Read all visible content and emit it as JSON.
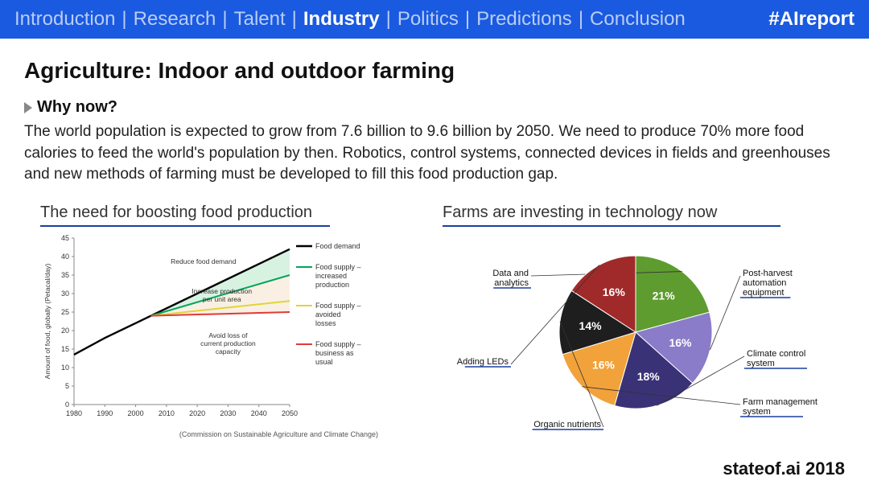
{
  "nav": {
    "items": [
      "Introduction",
      "Research",
      "Talent",
      "Industry",
      "Politics",
      "Predictions",
      "Conclusion"
    ],
    "active_index": 3,
    "separator": "|",
    "hashtag": "#AIreport",
    "bg_color": "#1a5ae0",
    "text_color": "#b9cdf5",
    "active_color": "#ffffff"
  },
  "title": "Agriculture: Indoor and outdoor farming",
  "subhead": "Why now?",
  "body": "The world population is expected to grow from 7.6 billion to 9.6 billion by 2050. We need to produce 70% more food calories to feed the world's population by then. Robotics, control systems, connected devices in fields and greenhouses and new methods of farming must be developed to fill this food production gap.",
  "line_chart": {
    "title": "The need for boosting food production",
    "type": "line",
    "x_ticks": [
      "1980",
      "1990",
      "2000",
      "2010",
      "2020",
      "2030",
      "2040",
      "2050"
    ],
    "y_ticks": [
      0,
      5,
      10,
      15,
      20,
      25,
      30,
      35,
      40,
      45
    ],
    "ylim": [
      0,
      45
    ],
    "y_label": "Amount of food, globally (Petacal/day)",
    "series": [
      {
        "name": "Food demand",
        "color": "#000000",
        "width": 2.4,
        "points": [
          [
            1980,
            13.5
          ],
          [
            1990,
            18
          ],
          [
            2000,
            22
          ],
          [
            2005,
            24
          ],
          [
            2050,
            42
          ]
        ]
      },
      {
        "name": "Food supply – increased production",
        "color": "#00a65a",
        "width": 2,
        "points": [
          [
            2005,
            24
          ],
          [
            2050,
            35
          ]
        ]
      },
      {
        "name": "Food supply – avoided losses",
        "color": "#e0d43a",
        "width": 2,
        "points": [
          [
            2005,
            24
          ],
          [
            2050,
            28
          ]
        ]
      },
      {
        "name": "Food supply – business as usual",
        "color": "#e03a3a",
        "width": 2,
        "points": [
          [
            2005,
            24
          ],
          [
            2050,
            25
          ]
        ]
      }
    ],
    "fills": [
      {
        "between": [
          0,
          1
        ],
        "color": "#c8ecd6",
        "opacity": 0.7
      },
      {
        "between": [
          1,
          3
        ],
        "color": "#f6e9d7",
        "opacity": 0.7
      }
    ],
    "annotations": [
      {
        "text": "Reduce food demand",
        "x": 2022,
        "y": 38
      },
      {
        "text": "Increase production per unit area",
        "x": 2028,
        "y": 30
      },
      {
        "text": "Avoid loss of current production capacity",
        "x": 2030,
        "y": 18
      }
    ],
    "annotation_fontsize": 8.5,
    "axis_fontsize": 9,
    "legend_fontsize": 9,
    "grid_color": "#888888",
    "source": "(Commission on Sustainable Agriculture and Climate Change)"
  },
  "pie_chart": {
    "title": "Farms are investing in technology now",
    "type": "pie",
    "slices": [
      {
        "label": "Data and analytics",
        "value": 21,
        "color": "#5e9c2f",
        "text": "21%"
      },
      {
        "label": "Post-harvest automation equipment",
        "value": 16,
        "color": "#8a7cc9",
        "text": "16%"
      },
      {
        "label": "Climate control system",
        "value": 18,
        "color": "#3a3277",
        "text": "18%"
      },
      {
        "label": "Farm management system",
        "value": 16,
        "color": "#f2a23a",
        "text": "16%"
      },
      {
        "label": "Organic nutrients",
        "value": 14,
        "color": "#1e1e1e",
        "text": "14%"
      },
      {
        "label": "Adding LEDs",
        "value": 16,
        "color": "#a02a2a",
        "text": "16%"
      }
    ],
    "start_angle": -90,
    "label_fontsize": 11,
    "pct_fontsize": 14,
    "pct_color": "#ffffff",
    "label_color": "#111111",
    "label_positions": {
      "Data and analytics": "left-top",
      "Post-harvest automation equipment": "right-top",
      "Climate control system": "right-mid",
      "Farm management system": "right-bottom",
      "Organic nutrients": "bottom",
      "Adding LEDs": "left-mid"
    },
    "underline_color": "#1a3fa0"
  },
  "footer": "stateof.ai 2018"
}
